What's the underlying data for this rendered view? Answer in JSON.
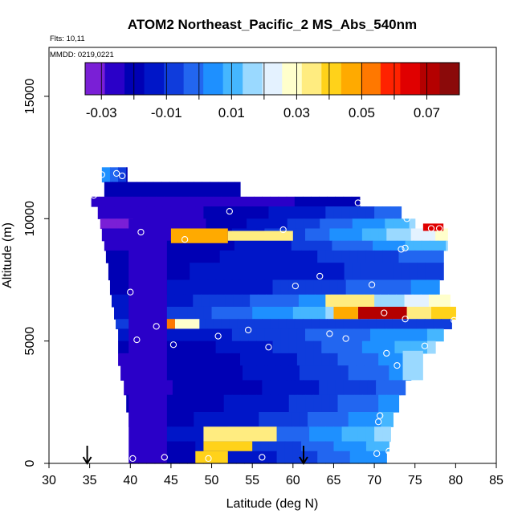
{
  "chart_data": {
    "type": "heatmap",
    "title": "ATOM2 Northeast_Pacific_2 MS_Abs_540nm",
    "flights_note": "Flts: 10,11",
    "dates_note": "MMDD: 0219,0221",
    "xlabel": "Latitude (deg N)",
    "ylabel": "Altitude (m)",
    "xlim": [
      30,
      85
    ],
    "ylim": [
      0,
      17000
    ],
    "x_ticks": [
      "30",
      "35",
      "40",
      "45",
      "50",
      "55",
      "60",
      "65",
      "70",
      "75",
      "80",
      "85"
    ],
    "y_ticks": [
      "0",
      "5000",
      "10000",
      "15000"
    ],
    "colorbar": {
      "range": [
        -0.035,
        0.08
      ],
      "tick_values": [
        -0.03,
        -0.01,
        0.01,
        0.03,
        0.05,
        0.07
      ],
      "tick_labels": [
        "-0.03",
        "-0.01",
        "0.01",
        "0.03",
        "0.05",
        "0.07"
      ],
      "colors": [
        "#7a1fd6",
        "#2a00c8",
        "#0000b4",
        "#0016c8",
        "#0f3cdc",
        "#2266f0",
        "#1e90ff",
        "#45b6ff",
        "#9ad9ff",
        "#e4f2ff",
        "#ffffcc",
        "#ffec80",
        "#ffd21a",
        "#ffaa00",
        "#ff7800",
        "#ff2200",
        "#e00000",
        "#b40000",
        "#8b0a0a"
      ]
    },
    "arrows_latitude": [
      34.7,
      61.3
    ],
    "observation_points": [
      {
        "lat": 36.5,
        "alt": 11800
      },
      {
        "lat": 38.3,
        "alt": 11850
      },
      {
        "lat": 39,
        "alt": 11750
      },
      {
        "lat": 35.5,
        "alt": 10950
      },
      {
        "lat": 68,
        "alt": 10650
      },
      {
        "lat": 52.2,
        "alt": 10300
      },
      {
        "lat": 74,
        "alt": 10000
      },
      {
        "lat": 41.3,
        "alt": 9450
      },
      {
        "lat": 46.7,
        "alt": 9150
      },
      {
        "lat": 58.8,
        "alt": 9550
      },
      {
        "lat": 77,
        "alt": 9600
      },
      {
        "lat": 78,
        "alt": 9600
      },
      {
        "lat": 73.3,
        "alt": 8750
      },
      {
        "lat": 73.8,
        "alt": 8800
      },
      {
        "lat": 63.3,
        "alt": 7650
      },
      {
        "lat": 60.3,
        "alt": 7250
      },
      {
        "lat": 69.7,
        "alt": 7300
      },
      {
        "lat": 40,
        "alt": 7000
      },
      {
        "lat": 71.2,
        "alt": 6150
      },
      {
        "lat": 73.8,
        "alt": 5900
      },
      {
        "lat": 79.8,
        "alt": 5850
      },
      {
        "lat": 43.2,
        "alt": 5600
      },
      {
        "lat": 54.5,
        "alt": 5450
      },
      {
        "lat": 50.8,
        "alt": 5200
      },
      {
        "lat": 64.5,
        "alt": 5300
      },
      {
        "lat": 66.5,
        "alt": 5100
      },
      {
        "lat": 40.8,
        "alt": 5050
      },
      {
        "lat": 45.3,
        "alt": 4850
      },
      {
        "lat": 57,
        "alt": 4750
      },
      {
        "lat": 76.2,
        "alt": 4800
      },
      {
        "lat": 71.5,
        "alt": 4500
      },
      {
        "lat": 72.8,
        "alt": 4000
      },
      {
        "lat": 70.7,
        "alt": 1950
      },
      {
        "lat": 70.5,
        "alt": 1700
      },
      {
        "lat": 40.3,
        "alt": 200
      },
      {
        "lat": 44.2,
        "alt": 250
      },
      {
        "lat": 49.6,
        "alt": 200
      },
      {
        "lat": 56.2,
        "alt": 250
      },
      {
        "lat": 70.3,
        "alt": 400
      },
      {
        "lat": 71.8,
        "alt": 500
      }
    ],
    "bands": [
      {
        "y0": 11500,
        "y1": 12100,
        "x0": 36.5,
        "x1": 39.6,
        "v0": 0.002,
        "v1": -0.02
      },
      {
        "y0": 10900,
        "y1": 11500,
        "x0": 36.8,
        "x1": 53.5,
        "v0": -0.022,
        "v1": -0.022
      },
      {
        "y0": 10500,
        "y1": 10900,
        "x0": 35.2,
        "x1": 68.2,
        "v0": -0.028,
        "v1": -0.02
      },
      {
        "y0": 10000,
        "y1": 10500,
        "x0": 36,
        "x1": 73.3,
        "v0": -0.028,
        "v1": 0.0
      },
      {
        "y0": 9600,
        "y1": 10000,
        "x0": 36.3,
        "x1": 75,
        "v0": -0.03,
        "v1": 0.015
      },
      {
        "y0": 9100,
        "y1": 9600,
        "x0": 36.5,
        "x1": 79,
        "v0": -0.028,
        "v1": 0.03
      },
      {
        "y0": 8700,
        "y1": 9100,
        "x0": 36.8,
        "x1": 79,
        "v0": -0.025,
        "v1": 0.015
      },
      {
        "y0": 8200,
        "y1": 8700,
        "x0": 37,
        "x1": 78.5,
        "v0": -0.02,
        "v1": 0.0
      },
      {
        "y0": 7500,
        "y1": 8200,
        "x0": 37.3,
        "x1": 78.5,
        "v0": -0.018,
        "v1": -0.005
      },
      {
        "y0": 6900,
        "y1": 7500,
        "x0": 37.5,
        "x1": 78,
        "v0": -0.018,
        "v1": 0.005
      },
      {
        "y0": 6400,
        "y1": 6900,
        "x0": 37.7,
        "x1": 79.3,
        "v0": -0.015,
        "v1": 0.03
      },
      {
        "y0": 5900,
        "y1": 6400,
        "x0": 38,
        "x1": 80,
        "v0": -0.012,
        "v1": 0.045
      },
      {
        "y0": 5500,
        "y1": 5900,
        "x0": 38.2,
        "x1": 79.5,
        "v0": -0.01,
        "v1": -0.01
      },
      {
        "y0": 5000,
        "y1": 5500,
        "x0": 38.5,
        "x1": 78.5,
        "v0": -0.015,
        "v1": 0.01
      },
      {
        "y0": 4500,
        "y1": 5000,
        "x0": 38.5,
        "x1": 77.5,
        "v0": -0.022,
        "v1": 0.015
      },
      {
        "y0": 4000,
        "y1": 4500,
        "x0": 38.5,
        "x1": 75.5,
        "v0": -0.024,
        "v1": 0.008
      },
      {
        "y0": 3400,
        "y1": 4000,
        "x0": 38.8,
        "x1": 74.5,
        "v0": -0.024,
        "v1": 0.005
      },
      {
        "y0": 2800,
        "y1": 3400,
        "x0": 39.2,
        "x1": 73.8,
        "v0": -0.024,
        "v1": 0.0
      },
      {
        "y0": 2100,
        "y1": 2800,
        "x0": 39.5,
        "x1": 73,
        "v0": -0.022,
        "v1": 0.005
      },
      {
        "y0": 1500,
        "y1": 2100,
        "x0": 39.8,
        "x1": 72.3,
        "v0": -0.02,
        "v1": 0.01
      },
      {
        "y0": 900,
        "y1": 1500,
        "x0": 40,
        "x1": 72,
        "v0": -0.018,
        "v1": 0.018
      },
      {
        "y0": 500,
        "y1": 900,
        "x0": 40,
        "x1": 71.8,
        "v0": -0.02,
        "v1": 0.012
      },
      {
        "y0": 0,
        "y1": 500,
        "x0": 40,
        "x1": 71.5,
        "v0": -0.022,
        "v1": 0.008
      }
    ],
    "features": [
      {
        "y0": 9000,
        "y1": 9600,
        "x0": 45,
        "x1": 52,
        "v": 0.045
      },
      {
        "y0": 9100,
        "y1": 9500,
        "x0": 52,
        "x1": 60,
        "v": 0.035
      },
      {
        "y0": 9500,
        "y1": 9800,
        "x0": 76,
        "x1": 78.5,
        "v": 0.065
      },
      {
        "y0": 5900,
        "y1": 6400,
        "x0": 68,
        "x1": 74,
        "v": 0.07
      },
      {
        "y0": 5900,
        "y1": 6400,
        "x0": 65,
        "x1": 68,
        "v": 0.045
      },
      {
        "y0": 6400,
        "y1": 6900,
        "x0": 64,
        "x1": 70,
        "v": 0.035
      },
      {
        "y0": 5500,
        "y1": 5900,
        "x0": 42,
        "x1": 45.5,
        "v": 0.05
      },
      {
        "y0": 5500,
        "y1": 5900,
        "x0": 45.5,
        "x1": 48.5,
        "v": 0.03
      },
      {
        "y0": 900,
        "y1": 1500,
        "x0": 49,
        "x1": 58,
        "v": 0.035
      },
      {
        "y0": 500,
        "y1": 900,
        "x0": 49,
        "x1": 55,
        "v": 0.04
      },
      {
        "y0": 0,
        "y1": 500,
        "x0": 48,
        "x1": 52,
        "v": 0.04
      },
      {
        "y0": 3400,
        "y1": 4600,
        "x0": 73.5,
        "x1": 76,
        "v": 0.015
      },
      {
        "y0": 0,
        "y1": 10000,
        "x0": 39.8,
        "x1": 44.5,
        "v": -0.026
      }
    ]
  }
}
